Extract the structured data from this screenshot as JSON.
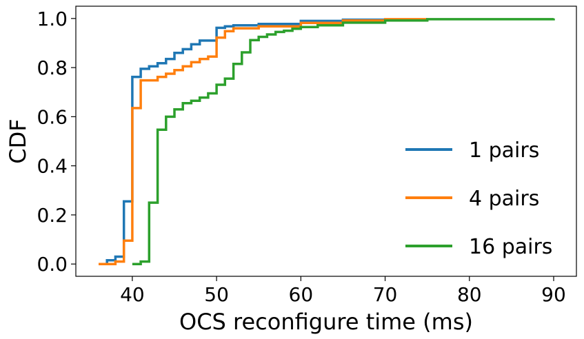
{
  "chart_data": {
    "type": "line",
    "subtype": "step-cdf",
    "title": "",
    "xlabel": "OCS reconfigure time (ms)",
    "ylabel": "CDF",
    "xlim": [
      33.3,
      92.7
    ],
    "ylim": [
      -0.05,
      1.05
    ],
    "xticks": [
      40,
      50,
      60,
      70,
      80,
      90
    ],
    "yticks": [
      0.0,
      0.2,
      0.4,
      0.6,
      0.8,
      1.0
    ],
    "xtick_labels": [
      "40",
      "50",
      "60",
      "70",
      "80",
      "90"
    ],
    "ytick_labels": [
      "0.0",
      "0.2",
      "0.4",
      "0.6",
      "0.8",
      "1.0"
    ],
    "grid": false,
    "legend_position": "lower-right",
    "series": [
      {
        "name": "1 pairs",
        "color": "#1f77b4",
        "x": [
          36,
          37,
          38,
          39,
          40,
          41,
          42,
          43,
          44,
          45,
          46,
          47,
          48,
          50,
          51,
          52,
          55,
          60,
          65,
          75
        ],
        "y": [
          0.0,
          0.015,
          0.03,
          0.255,
          0.762,
          0.795,
          0.805,
          0.818,
          0.835,
          0.86,
          0.875,
          0.895,
          0.91,
          0.962,
          0.968,
          0.972,
          0.978,
          0.99,
          0.995,
          1.0
        ]
      },
      {
        "name": "4 pairs",
        "color": "#ff7f0e",
        "x": [
          36,
          38,
          39,
          40,
          41,
          43,
          44,
          45,
          46,
          47,
          48,
          49,
          50,
          51,
          52,
          55,
          60,
          65,
          70,
          75
        ],
        "y": [
          0.0,
          0.01,
          0.095,
          0.635,
          0.748,
          0.762,
          0.775,
          0.79,
          0.805,
          0.822,
          0.835,
          0.845,
          0.922,
          0.948,
          0.96,
          0.968,
          0.982,
          0.992,
          0.997,
          1.0
        ]
      },
      {
        "name": "16 pairs",
        "color": "#2ca02c",
        "x": [
          40,
          41,
          42,
          43,
          44,
          45,
          46,
          47,
          48,
          49,
          50,
          51,
          52,
          53,
          54,
          55,
          56,
          57,
          58,
          59,
          60,
          62,
          65,
          70,
          75,
          90
        ],
        "y": [
          0.0,
          0.01,
          0.25,
          0.547,
          0.6,
          0.63,
          0.655,
          0.665,
          0.678,
          0.695,
          0.73,
          0.755,
          0.815,
          0.862,
          0.912,
          0.925,
          0.935,
          0.945,
          0.95,
          0.958,
          0.965,
          0.972,
          0.983,
          0.992,
          0.997,
          1.0
        ]
      }
    ]
  }
}
